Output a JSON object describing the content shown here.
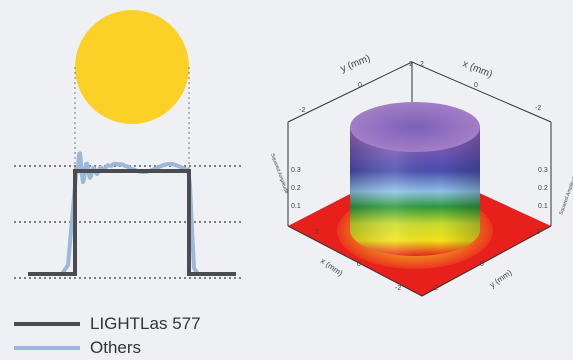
{
  "chart_data": [
    {
      "type": "line",
      "title": "",
      "xlabel": "",
      "ylabel": "",
      "series": [
        {
          "name": "LIGHTLas 577",
          "color": "#4a4c50",
          "shape": "flat-top"
        },
        {
          "name": "Others",
          "color": "#9cb7d8",
          "shape": "oscillating"
        }
      ],
      "spot_color": "#fbd127",
      "guide_lines": "dotted horizontal and vertical reference lines"
    },
    {
      "type": "surface-3d",
      "title": "",
      "axes": {
        "y": {
          "label": "y (mm)",
          "ticks": [
            "2",
            "0"
          ]
        },
        "x_back": {
          "label": "x (mm)",
          "ticks": [
            "2",
            "0",
            "-2"
          ]
        },
        "x_front": {
          "label": "x (mm)",
          "ticks": [
            "2",
            "0",
            "-2"
          ]
        },
        "y_front": {
          "label": "y (mm)",
          "ticks": [
            "0",
            "-2"
          ]
        },
        "z_left": {
          "label": "Squared Amplitude",
          "ticks": [
            "0.3",
            "0.2",
            "0.1"
          ]
        },
        "z_right": {
          "label": "Squared Amplitude",
          "ticks": [
            "0.3",
            "0.2",
            "0.1"
          ]
        }
      },
      "corner_labels": [
        "2",
        "-2"
      ],
      "colormap": [
        "#e8201c",
        "#f4e41a",
        "#2d9a3c",
        "#8fc2e8",
        "#4a4db0",
        "#9a6fbf"
      ]
    }
  ],
  "legend": {
    "items": [
      {
        "label": "LIGHTLas 577",
        "color": "#4a4c50"
      },
      {
        "label": "Others",
        "color": "#9cb7d8"
      }
    ]
  }
}
